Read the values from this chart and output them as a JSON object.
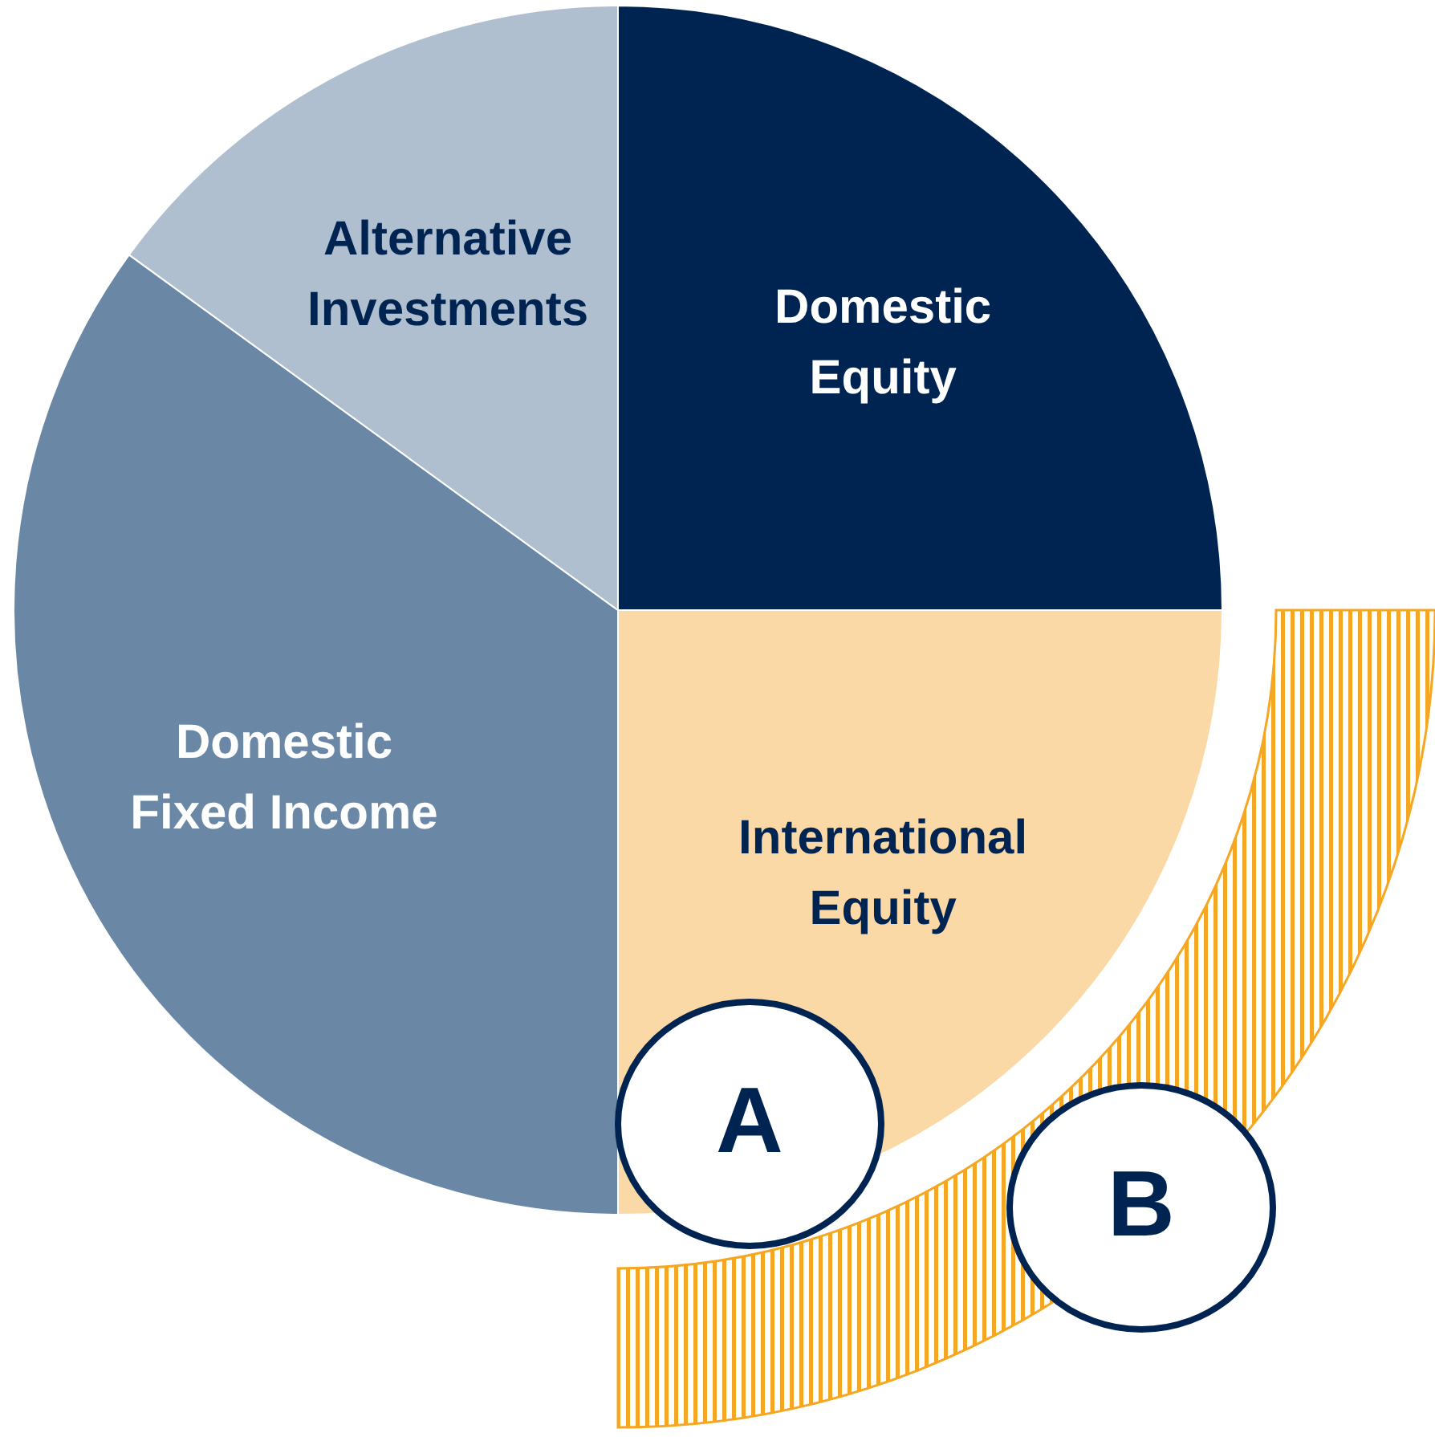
{
  "chart_data": {
    "type": "pie",
    "categories": [
      "Domestic Equity",
      "International Equity",
      "Domestic Fixed Income",
      "Alternative Investments"
    ],
    "values": [
      25,
      25,
      35,
      15
    ],
    "colors": [
      "#002452",
      "#fad9a6",
      "#6a88a6",
      "#b0bfcf"
    ],
    "legend": false,
    "annotations": [
      "A",
      "B"
    ]
  }
}
